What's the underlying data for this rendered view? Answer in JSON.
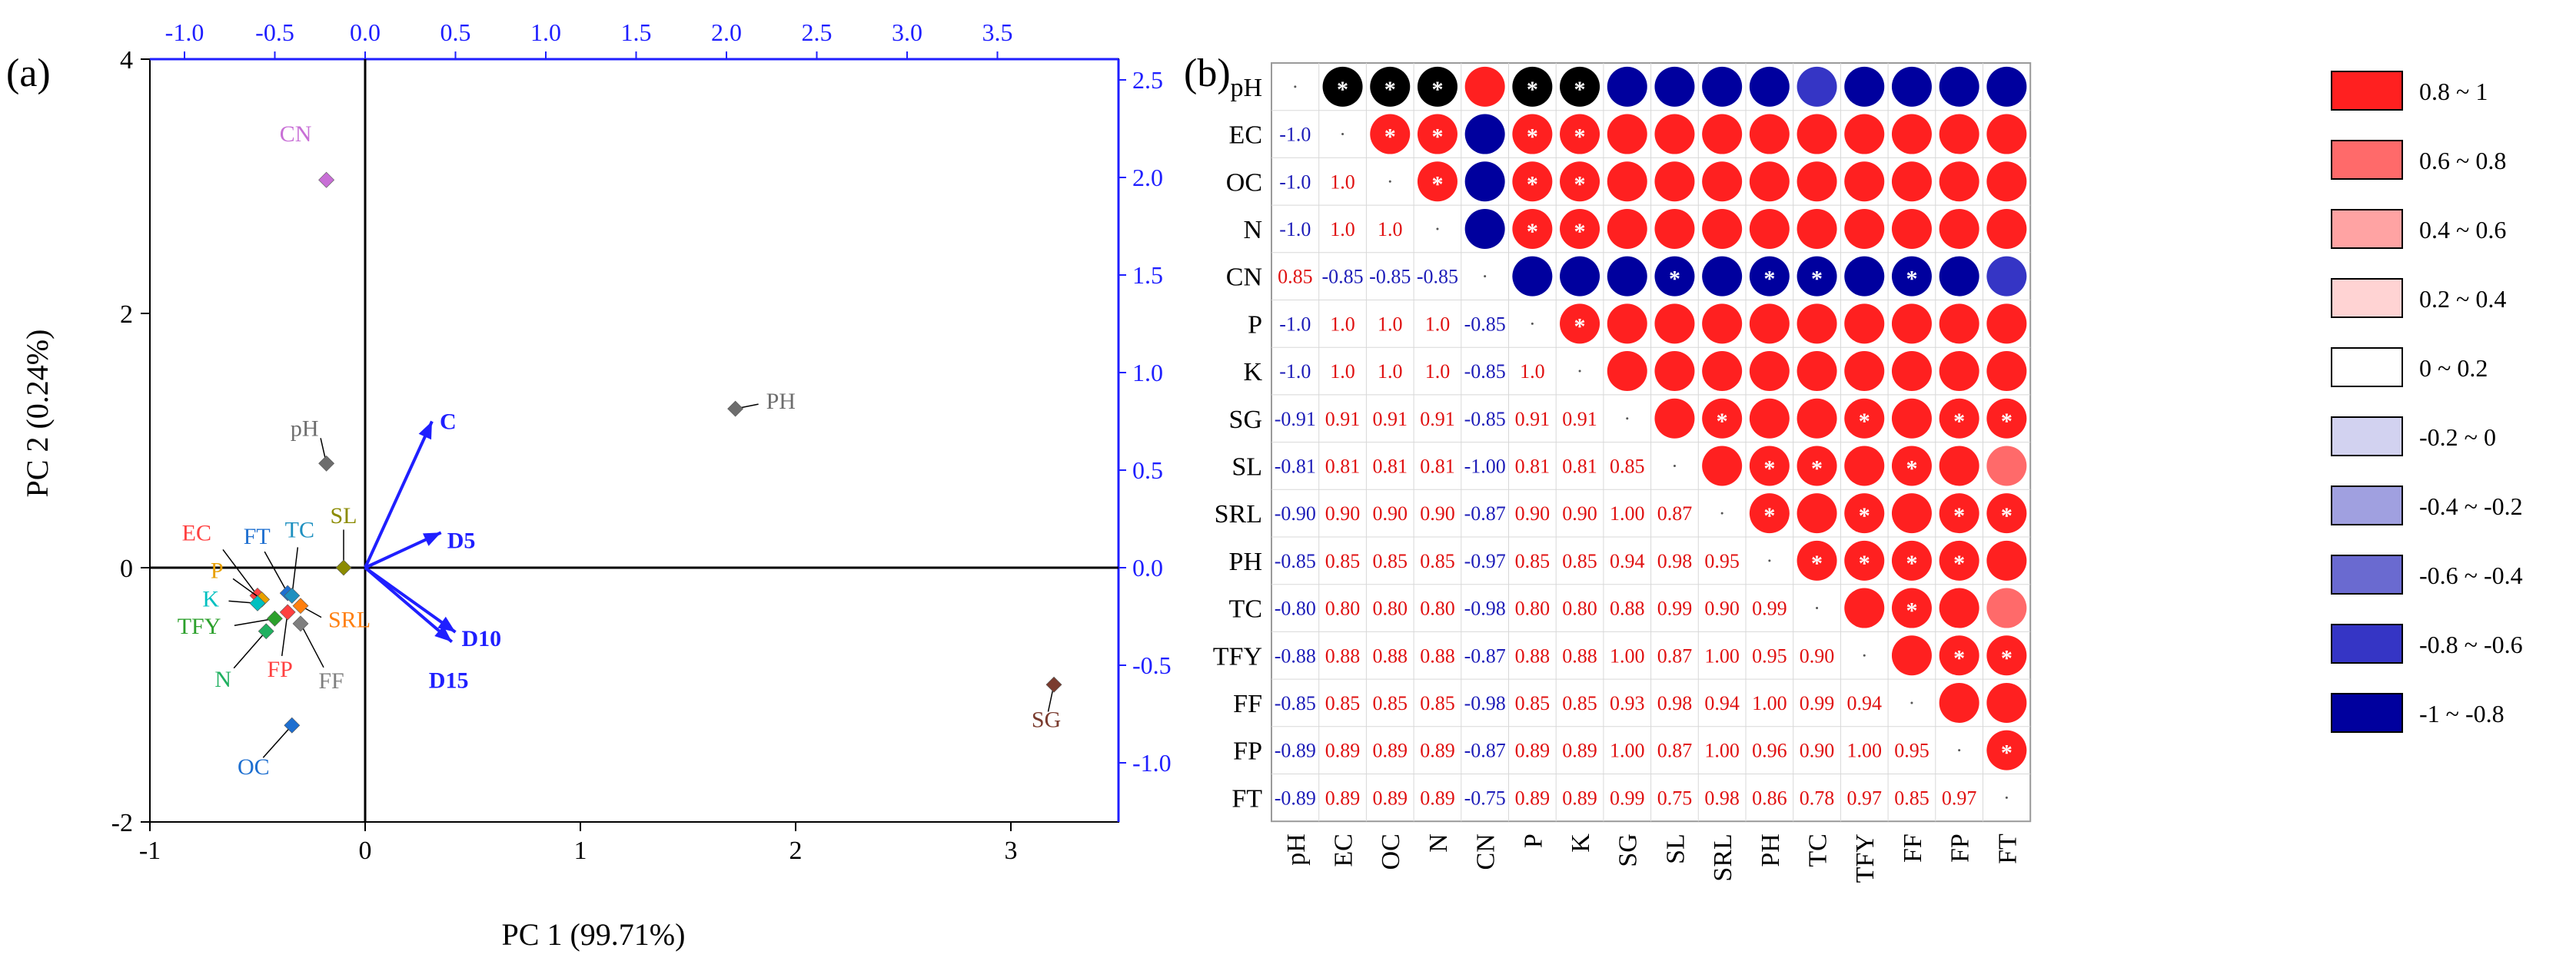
{
  "panel_a": {
    "label": "(a)",
    "colors": {
      "vector": "#1f1fff",
      "axis": "#000000",
      "right_axis": "#1f1fff"
    },
    "chart_data": {
      "type": "scatter",
      "title": "",
      "xlabel": "PC 1 (99.71%)",
      "ylabel": "PC 2 (0.24%)",
      "xlim": [
        -1,
        3.5
      ],
      "ylim": [
        -2,
        4
      ],
      "x_ticks": [
        "-1",
        "0",
        "1",
        "2",
        "3"
      ],
      "y_ticks": [
        "-2",
        "0",
        "2",
        "4"
      ],
      "top_ticks": [
        "-1.0",
        "-0.5",
        "0.0",
        "0.5",
        "1.0",
        "1.5",
        "2.0",
        "2.5",
        "3.0",
        "3.5"
      ],
      "right_ticks": [
        "-1.0",
        "-0.5",
        "0.0",
        "0.5",
        "1.0",
        "1.5",
        "2.0",
        "2.5"
      ],
      "points": [
        {
          "name": "CN",
          "x": -0.18,
          "y": 3.05,
          "color": "#c86fd6"
        },
        {
          "name": "pH",
          "x": -0.18,
          "y": 0.82,
          "color": "#6d6d6d"
        },
        {
          "name": "PH",
          "x": 1.72,
          "y": 1.25,
          "color": "#6d6d6d"
        },
        {
          "name": "SG",
          "x": 3.2,
          "y": -0.92,
          "color": "#7a3b2e"
        },
        {
          "name": "SL",
          "x": -0.1,
          "y": 0.0,
          "color": "#8b8b00"
        },
        {
          "name": "EC",
          "x": -0.5,
          "y": -0.22,
          "color": "#ff4040"
        },
        {
          "name": "FT",
          "x": -0.36,
          "y": -0.2,
          "color": "#1e6fd0"
        },
        {
          "name": "TC",
          "x": -0.34,
          "y": -0.22,
          "color": "#1e90c0"
        },
        {
          "name": "P",
          "x": -0.48,
          "y": -0.25,
          "color": "#e8a000"
        },
        {
          "name": "K",
          "x": -0.5,
          "y": -0.28,
          "color": "#00c0c0"
        },
        {
          "name": "SRL",
          "x": -0.3,
          "y": -0.3,
          "color": "#ff7f0e"
        },
        {
          "name": "TFY",
          "x": -0.42,
          "y": -0.4,
          "color": "#2ca02c"
        },
        {
          "name": "N",
          "x": -0.46,
          "y": -0.5,
          "color": "#20b060"
        },
        {
          "name": "FP",
          "x": -0.36,
          "y": -0.35,
          "color": "#ff4040"
        },
        {
          "name": "FF",
          "x": -0.3,
          "y": -0.44,
          "color": "#7f7f7f"
        },
        {
          "name": "OC",
          "x": -0.34,
          "y": -1.24,
          "color": "#1e6fd0"
        }
      ],
      "vectors": [
        {
          "name": "C",
          "x": 0.37,
          "y": 0.75
        },
        {
          "name": "D5",
          "x": 0.42,
          "y": 0.18
        },
        {
          "name": "D10",
          "x": 0.5,
          "y": -0.33
        },
        {
          "name": "D15",
          "x": 0.48,
          "y": -0.38
        }
      ]
    }
  },
  "panel_b": {
    "label": "(b)",
    "chart_data": {
      "type": "heatmap",
      "title": "",
      "variables": [
        "pH",
        "EC",
        "OC",
        "N",
        "CN",
        "P",
        "K",
        "SG",
        "SL",
        "SRL",
        "PH",
        "TC",
        "TFY",
        "FF",
        "FP",
        "FT"
      ],
      "lower_values": [
        [],
        [
          "-1.0"
        ],
        [
          "-1.0",
          "1.0"
        ],
        [
          "-1.0",
          "1.0",
          "1.0"
        ],
        [
          "0.85",
          "-0.85",
          "-0.85",
          "-0.85"
        ],
        [
          "-1.0",
          "1.0",
          "1.0",
          "1.0",
          "-0.85"
        ],
        [
          "-1.0",
          "1.0",
          "1.0",
          "1.0",
          "-0.85",
          "1.0"
        ],
        [
          "-0.91",
          "0.91",
          "0.91",
          "0.91",
          "-0.85",
          "0.91",
          "0.91"
        ],
        [
          "-0.81",
          "0.81",
          "0.81",
          "0.81",
          "-1.00",
          "0.81",
          "0.81",
          "0.85"
        ],
        [
          "-0.90",
          "0.90",
          "0.90",
          "0.90",
          "-0.87",
          "0.90",
          "0.90",
          "1.00",
          "0.87"
        ],
        [
          "-0.85",
          "0.85",
          "0.85",
          "0.85",
          "-0.97",
          "0.85",
          "0.85",
          "0.94",
          "0.98",
          "0.95"
        ],
        [
          "-0.80",
          "0.80",
          "0.80",
          "0.80",
          "-0.98",
          "0.80",
          "0.80",
          "0.88",
          "0.99",
          "0.90",
          "0.99"
        ],
        [
          "-0.88",
          "0.88",
          "0.88",
          "0.88",
          "-0.87",
          "0.88",
          "0.88",
          "1.00",
          "0.87",
          "1.00",
          "0.95",
          "0.90"
        ],
        [
          "-0.85",
          "0.85",
          "0.85",
          "0.85",
          "-0.98",
          "0.85",
          "0.85",
          "0.93",
          "0.98",
          "0.94",
          "1.00",
          "0.99",
          "0.94"
        ],
        [
          "-0.89",
          "0.89",
          "0.89",
          "0.89",
          "-0.87",
          "0.89",
          "0.89",
          "1.00",
          "0.87",
          "1.00",
          "0.96",
          "0.90",
          "1.00",
          "0.95"
        ],
        [
          "-0.89",
          "0.89",
          "0.89",
          "0.89",
          "-0.75",
          "0.89",
          "0.89",
          "0.99",
          "0.75",
          "0.98",
          "0.86",
          "0.78",
          "0.97",
          "0.85",
          "0.97"
        ]
      ],
      "significance_marker": "*",
      "significant_cells": [
        [
          0,
          1
        ],
        [
          0,
          2
        ],
        [
          0,
          3
        ],
        [
          0,
          5
        ],
        [
          0,
          6
        ],
        [
          1,
          2
        ],
        [
          1,
          3
        ],
        [
          1,
          5
        ],
        [
          1,
          6
        ],
        [
          2,
          3
        ],
        [
          2,
          5
        ],
        [
          2,
          6
        ],
        [
          3,
          5
        ],
        [
          3,
          6
        ],
        [
          4,
          8
        ],
        [
          4,
          10
        ],
        [
          4,
          11
        ],
        [
          4,
          13
        ],
        [
          5,
          6
        ],
        [
          7,
          9
        ],
        [
          7,
          12
        ],
        [
          7,
          14
        ],
        [
          7,
          15
        ],
        [
          8,
          10
        ],
        [
          8,
          11
        ],
        [
          8,
          13
        ],
        [
          9,
          10
        ],
        [
          9,
          12
        ],
        [
          9,
          14
        ],
        [
          9,
          15
        ],
        [
          10,
          11
        ],
        [
          10,
          12
        ],
        [
          10,
          13
        ],
        [
          10,
          14
        ],
        [
          11,
          13
        ],
        [
          12,
          14
        ],
        [
          12,
          15
        ],
        [
          14,
          15
        ]
      ],
      "legend": [
        {
          "label": "0.8   ~ 1",
          "color": "#ff2020"
        },
        {
          "label": "0.6   ~ 0.8",
          "color": "#ff6a6a"
        },
        {
          "label": "0.4   ~ 0.6",
          "color": "#ffa3a3"
        },
        {
          "label": "0.2   ~ 0.4",
          "color": "#ffd3d3"
        },
        {
          "label": "0     ~ 0.2",
          "color": "#ffffff"
        },
        {
          "label": "-0.2 ~ 0",
          "color": "#d2d2f0"
        },
        {
          "label": "-0.4 ~ -0.2",
          "color": "#a0a0e0"
        },
        {
          "label": "-0.6 ~ -0.4",
          "color": "#6a6ad0"
        },
        {
          "label": "-0.8 ~ -0.6",
          "color": "#3535c5"
        },
        {
          "label": "-1    ~ -0.8",
          "color": "#00009e"
        }
      ]
    }
  }
}
